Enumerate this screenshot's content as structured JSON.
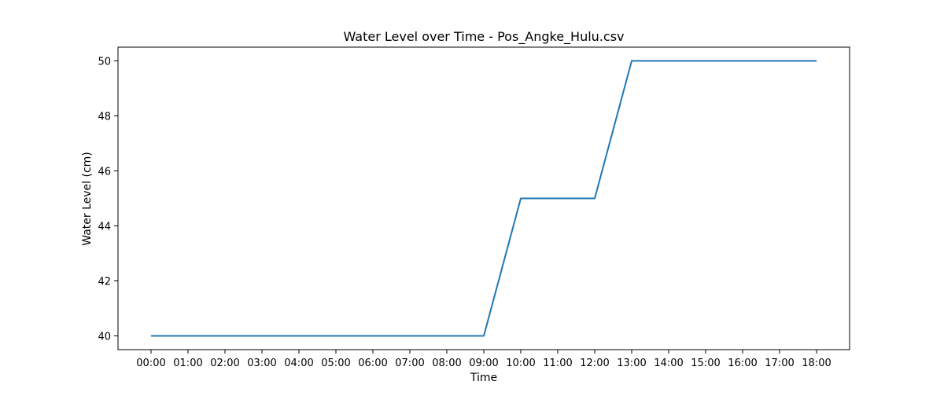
{
  "chart_data": {
    "type": "line",
    "title": "Water Level over Time - Pos_Angke_Hulu.csv",
    "xlabel": "Time",
    "ylabel": "Water Level (cm)",
    "x": [
      "00:00",
      "01:00",
      "02:00",
      "03:00",
      "04:00",
      "05:00",
      "06:00",
      "07:00",
      "08:00",
      "09:00",
      "10:00",
      "11:00",
      "12:00",
      "13:00",
      "14:00",
      "15:00",
      "16:00",
      "17:00",
      "18:00"
    ],
    "series": [
      {
        "name": "",
        "values": [
          40,
          40,
          40,
          40,
          40,
          40,
          40,
          40,
          40,
          40,
          45,
          45,
          45,
          50,
          50,
          50,
          50,
          50,
          50
        ]
      }
    ],
    "yticks": [
      40,
      42,
      44,
      46,
      48,
      50
    ],
    "ylim": [
      39.5,
      50.5
    ],
    "grid": false,
    "line_color": "#1f77b4"
  }
}
